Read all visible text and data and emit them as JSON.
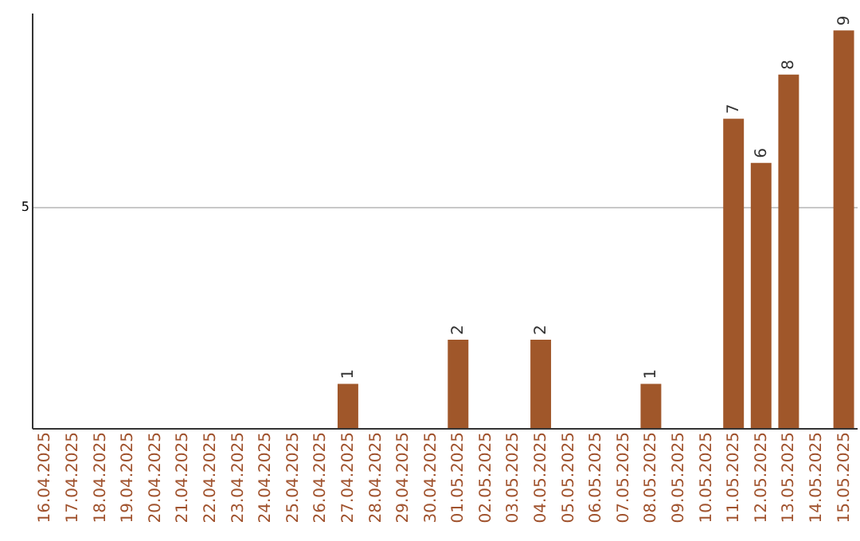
{
  "chart_data": {
    "type": "bar",
    "categories": [
      "16.04.2025",
      "17.04.2025",
      "18.04.2025",
      "19.04.2025",
      "20.04.2025",
      "21.04.2025",
      "22.04.2025",
      "23.04.2025",
      "24.04.2025",
      "25.04.2025",
      "26.04.2025",
      "27.04.2025",
      "28.04.2025",
      "29.04.2025",
      "30.04.2025",
      "01.05.2025",
      "02.05.2025",
      "03.05.2025",
      "04.05.2025",
      "05.05.2025",
      "06.05.2025",
      "07.05.2025",
      "08.05.2025",
      "09.05.2025",
      "10.05.2025",
      "11.05.2025",
      "12.05.2025",
      "13.05.2025",
      "14.05.2025",
      "15.05.2025"
    ],
    "values": [
      0,
      0,
      0,
      0,
      0,
      0,
      0,
      0,
      0,
      0,
      0,
      1,
      0,
      0,
      0,
      2,
      0,
      0,
      2,
      0,
      0,
      0,
      1,
      0,
      0,
      7,
      6,
      8,
      0,
      9
    ],
    "value_labels": [
      null,
      null,
      null,
      null,
      null,
      null,
      null,
      null,
      null,
      null,
      null,
      "1",
      null,
      null,
      null,
      "2",
      null,
      null,
      "2",
      null,
      null,
      null,
      "1",
      null,
      null,
      "7",
      "6",
      "8",
      null,
      "9"
    ],
    "color": "#a0572a",
    "ylim": [
      0,
      9.4
    ],
    "yticks": [
      5
    ],
    "grid": "y"
  }
}
